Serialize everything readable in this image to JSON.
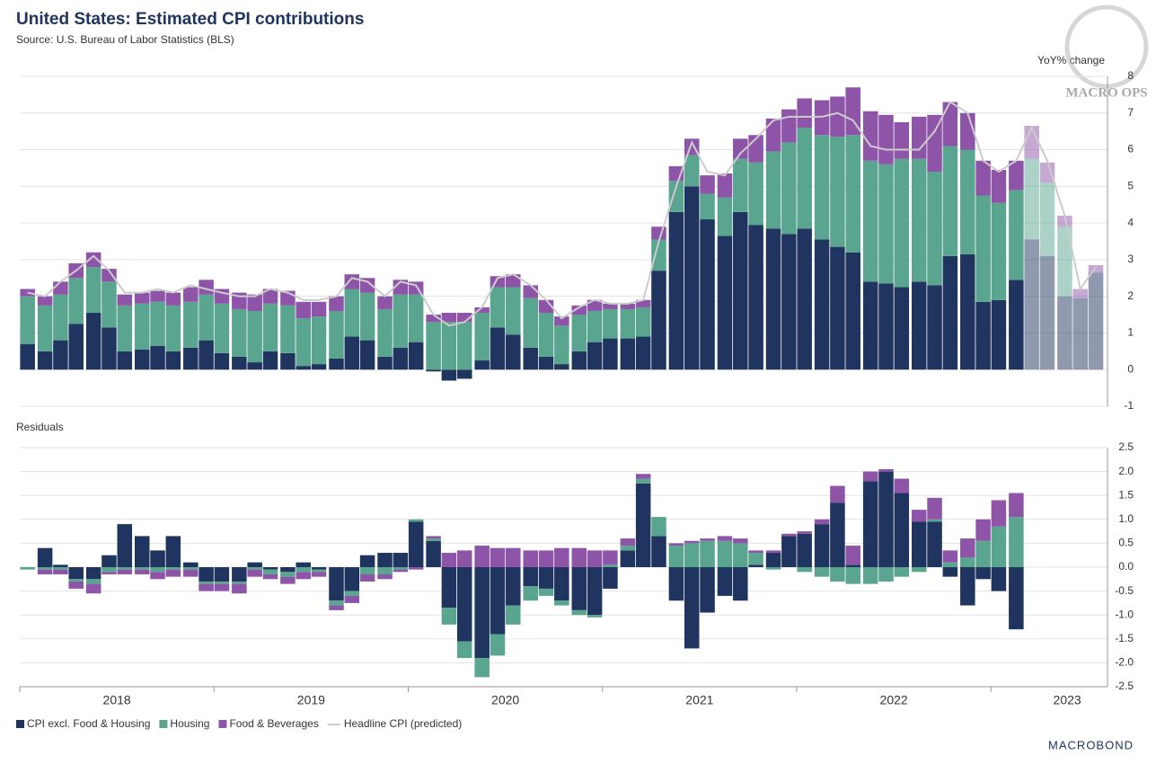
{
  "chart_data": [
    {
      "type": "bar",
      "stacked": true,
      "title": "United States: Estimated CPI contributions",
      "subtitle": "Source: U.S. Bureau of Labor Statistics (BLS)",
      "ylabel": "YoY% change",
      "x": [
        2018.04,
        2018.13,
        2018.21,
        2018.29,
        2018.38,
        2018.46,
        2018.54,
        2018.63,
        2018.71,
        2018.79,
        2018.88,
        2018.96,
        2019.04,
        2019.13,
        2019.21,
        2019.29,
        2019.38,
        2019.46,
        2019.54,
        2019.63,
        2019.71,
        2019.79,
        2019.88,
        2019.96,
        2020.04,
        2020.13,
        2020.21,
        2020.29,
        2020.38,
        2020.46,
        2020.54,
        2020.63,
        2020.71,
        2020.79,
        2020.88,
        2020.96,
        2021.04,
        2021.13,
        2021.21,
        2021.29,
        2021.38,
        2021.46,
        2021.54,
        2021.63,
        2021.71,
        2021.79,
        2021.88,
        2021.96,
        2022.04,
        2022.13,
        2022.21,
        2022.29,
        2022.38,
        2022.46,
        2022.54,
        2022.63,
        2022.71,
        2022.79,
        2022.88,
        2022.96,
        2023.04,
        2023.13,
        2023.21,
        2023.29,
        2023.38,
        2023.46,
        2023.54
      ],
      "xlim": [
        2018,
        2023.6
      ],
      "xticks": [
        2018,
        2019,
        2020,
        2021,
        2022,
        2023
      ],
      "ylim": [
        -1,
        8
      ],
      "yticks": [
        -1,
        0,
        1,
        2,
        3,
        4,
        5,
        6,
        7,
        8
      ],
      "grid": true,
      "series": [
        {
          "name": "CPI excl. Food & Housing",
          "color": "#1f3560",
          "values": [
            0.7,
            0.5,
            0.8,
            1.25,
            1.55,
            1.15,
            0.5,
            0.55,
            0.65,
            0.5,
            0.6,
            0.8,
            0.45,
            0.35,
            0.2,
            0.5,
            0.45,
            0.1,
            0.15,
            0.3,
            0.9,
            0.8,
            0.35,
            0.6,
            0.75,
            -0.05,
            -0.3,
            -0.25,
            0.25,
            1.15,
            0.95,
            0.6,
            0.35,
            0.15,
            0.5,
            0.75,
            0.85,
            0.85,
            0.9,
            2.7,
            4.3,
            5.0,
            4.1,
            3.65,
            4.3,
            3.95,
            3.85,
            3.7,
            3.85,
            3.55,
            3.35,
            3.2,
            2.4,
            2.35,
            2.25,
            2.4,
            2.3,
            3.1,
            3.15,
            1.85,
            1.9,
            2.45,
            3.55,
            3.1,
            2.0,
            1.95,
            2.65
          ]
        },
        {
          "name": "Housing",
          "color": "#5aa58f",
          "values": [
            1.3,
            1.25,
            1.25,
            1.25,
            1.25,
            1.25,
            1.25,
            1.25,
            1.2,
            1.25,
            1.25,
            1.25,
            1.35,
            1.3,
            1.4,
            1.3,
            1.3,
            1.3,
            1.3,
            1.3,
            1.3,
            1.3,
            1.3,
            1.45,
            1.3,
            1.3,
            1.3,
            1.3,
            1.3,
            1.1,
            1.3,
            1.35,
            1.2,
            1.05,
            1.0,
            0.85,
            0.8,
            0.8,
            0.8,
            0.85,
            0.85,
            0.85,
            0.7,
            1.05,
            1.45,
            1.7,
            2.1,
            2.5,
            2.75,
            2.85,
            3.0,
            3.2,
            3.3,
            3.25,
            3.5,
            3.35,
            3.1,
            3.0,
            2.85,
            2.9,
            2.65,
            2.45,
            2.2,
            2.0,
            1.9,
            0,
            0
          ]
        },
        {
          "name": "Food & Beverages",
          "color": "#8e54a8",
          "values": [
            0.2,
            0.25,
            0.35,
            0.4,
            0.4,
            0.35,
            0.3,
            0.3,
            0.3,
            0.35,
            0.4,
            0.4,
            0.4,
            0.45,
            0.45,
            0.4,
            0.4,
            0.45,
            0.4,
            0.4,
            0.4,
            0.4,
            0.35,
            0.4,
            0.35,
            0.2,
            0.25,
            0.25,
            0.15,
            0.3,
            0.35,
            0.35,
            0.35,
            0.25,
            0.25,
            0.3,
            0.15,
            0.15,
            0.2,
            0.35,
            0.4,
            0.45,
            0.5,
            0.65,
            0.55,
            0.75,
            0.9,
            0.9,
            0.8,
            0.95,
            1.1,
            1.3,
            1.35,
            1.35,
            1.0,
            1.15,
            1.55,
            1.2,
            1.0,
            0.95,
            0.9,
            0.8,
            0.9,
            0.55,
            0.3,
            0.25,
            0.2
          ]
        },
        {
          "name": "Headline CPI (predicted)",
          "type": "line",
          "color": "#cccccc",
          "values": [
            2.1,
            2.0,
            2.4,
            2.7,
            3.1,
            2.7,
            2.1,
            2.1,
            2.2,
            2.1,
            2.3,
            2.2,
            2.1,
            2.0,
            2.0,
            2.2,
            2.1,
            1.9,
            1.9,
            2.0,
            2.5,
            2.4,
            2.0,
            2.4,
            2.3,
            1.5,
            1.2,
            1.3,
            1.7,
            2.5,
            2.6,
            2.3,
            1.9,
            1.4,
            1.7,
            1.9,
            1.8,
            1.8,
            1.9,
            3.5,
            5.0,
            6.2,
            5.4,
            5.3,
            5.9,
            6.3,
            6.8,
            6.9,
            6.9,
            6.9,
            7.0,
            6.8,
            6.1,
            6.0,
            6.0,
            6.0,
            6.5,
            7.3,
            7.0,
            5.7,
            5.4,
            5.7,
            6.6,
            5.7,
            4.2,
            2.2,
            2.8
          ]
        }
      ]
    },
    {
      "type": "bar",
      "stacked": true,
      "title": "Residuals",
      "x": [
        2018.04,
        2018.13,
        2018.21,
        2018.29,
        2018.38,
        2018.46,
        2018.54,
        2018.63,
        2018.71,
        2018.79,
        2018.88,
        2018.96,
        2019.04,
        2019.13,
        2019.21,
        2019.29,
        2019.38,
        2019.46,
        2019.54,
        2019.63,
        2019.71,
        2019.79,
        2019.88,
        2019.96,
        2020.04,
        2020.13,
        2020.21,
        2020.29,
        2020.38,
        2020.46,
        2020.54,
        2020.63,
        2020.71,
        2020.79,
        2020.88,
        2020.96,
        2021.04,
        2021.13,
        2021.21,
        2021.29,
        2021.38,
        2021.46,
        2021.54,
        2021.63,
        2021.71,
        2021.79,
        2021.88,
        2021.96,
        2022.04,
        2022.13,
        2022.21,
        2022.29,
        2022.38,
        2022.46,
        2022.54,
        2022.63,
        2022.71,
        2022.79,
        2022.88,
        2022.96,
        2023.04,
        2023.13
      ],
      "xlim": [
        2018,
        2023.6
      ],
      "xticks": [
        2018,
        2019,
        2020,
        2021,
        2022,
        2023
      ],
      "ylim": [
        -2.5,
        2.5
      ],
      "grid": true,
      "yticks": [
        {
          "value": -2.5,
          "label": "-2.5"
        },
        {
          "value": -2,
          "label": "-2.0"
        },
        {
          "value": -1.5,
          "label": "-1.5"
        },
        {
          "value": -1,
          "label": "-1.0"
        },
        {
          "value": -0.5,
          "label": "-0.5"
        },
        {
          "value": 0,
          "label": "0.0"
        },
        {
          "value": 0.5,
          "label": "0.5"
        },
        {
          "value": 1,
          "label": "1.0"
        },
        {
          "value": 1.5,
          "label": "1.5"
        },
        {
          "value": 2,
          "label": "2.0"
        },
        {
          "value": 2.5,
          "label": "2.5"
        }
      ],
      "series": [
        {
          "name": "CPI excl. Food & Housing",
          "color": "#1f3560",
          "values": [
            0,
            0.4,
            0.05,
            -0.25,
            -0.25,
            0.25,
            0.9,
            0.65,
            0.35,
            0.65,
            0.1,
            -0.3,
            -0.3,
            -0.3,
            0.1,
            -0.05,
            -0.1,
            0.1,
            -0.05,
            -0.7,
            -0.5,
            0.25,
            0.3,
            0.3,
            0.95,
            0.55,
            -0.85,
            -1.55,
            -1.9,
            -1.4,
            -0.8,
            -0.4,
            -0.45,
            -0.7,
            -0.9,
            -1.0,
            -0.45,
            0.35,
            1.75,
            0.65,
            -0.7,
            -1.7,
            -0.95,
            -0.6,
            -0.7,
            0.05,
            0.3,
            0.65,
            0.7,
            0.9,
            1.35,
            0.05,
            1.8,
            2.0,
            1.55,
            0.95,
            0.95,
            -0.2,
            -0.8,
            -0.25,
            -0.5,
            -1.3
          ]
        },
        {
          "name": "Housing",
          "color": "#5aa58f",
          "values": [
            -0.05,
            -0.05,
            -0.05,
            -0.05,
            -0.1,
            -0.1,
            -0.05,
            -0.05,
            -0.1,
            -0.05,
            -0.05,
            -0.05,
            -0.05,
            -0.05,
            -0.05,
            -0.1,
            -0.1,
            -0.1,
            -0.05,
            -0.1,
            -0.1,
            -0.15,
            -0.15,
            -0.05,
            0.05,
            0.05,
            -0.35,
            -0.35,
            -0.4,
            -0.45,
            -0.4,
            -0.3,
            -0.15,
            -0.1,
            -0.1,
            -0.05,
            0.05,
            0.1,
            0.1,
            0.4,
            0.45,
            0.5,
            0.55,
            0.55,
            0.5,
            0.25,
            -0.05,
            0,
            -0.1,
            -0.2,
            -0.3,
            -0.35,
            -0.35,
            -0.3,
            -0.2,
            -0.1,
            0.05,
            0.1,
            0.2,
            0.55,
            0.85,
            1.05
          ]
        },
        {
          "name": "Food & Beverages",
          "color": "#8e54a8",
          "values": [
            0,
            -0.1,
            -0.1,
            -0.15,
            -0.2,
            -0.05,
            -0.1,
            -0.1,
            -0.15,
            -0.15,
            -0.15,
            -0.15,
            -0.15,
            -0.2,
            -0.15,
            -0.1,
            -0.15,
            -0.15,
            -0.1,
            -0.1,
            -0.15,
            -0.15,
            -0.1,
            -0.05,
            -0.05,
            0.05,
            0.3,
            0.35,
            0.45,
            0.4,
            0.4,
            0.35,
            0.35,
            0.4,
            0.4,
            0.35,
            0.3,
            0.15,
            0.1,
            0,
            0.05,
            0.05,
            0.05,
            0.1,
            0.1,
            0.05,
            0.05,
            0.05,
            0.05,
            0.1,
            0.35,
            0.4,
            0.2,
            0.05,
            0.3,
            0.25,
            0.45,
            0.25,
            0.4,
            0.45,
            0.55,
            0.5
          ]
        }
      ]
    }
  ],
  "logos": [
    "MACRO OPS",
    "MACROBOND"
  ]
}
